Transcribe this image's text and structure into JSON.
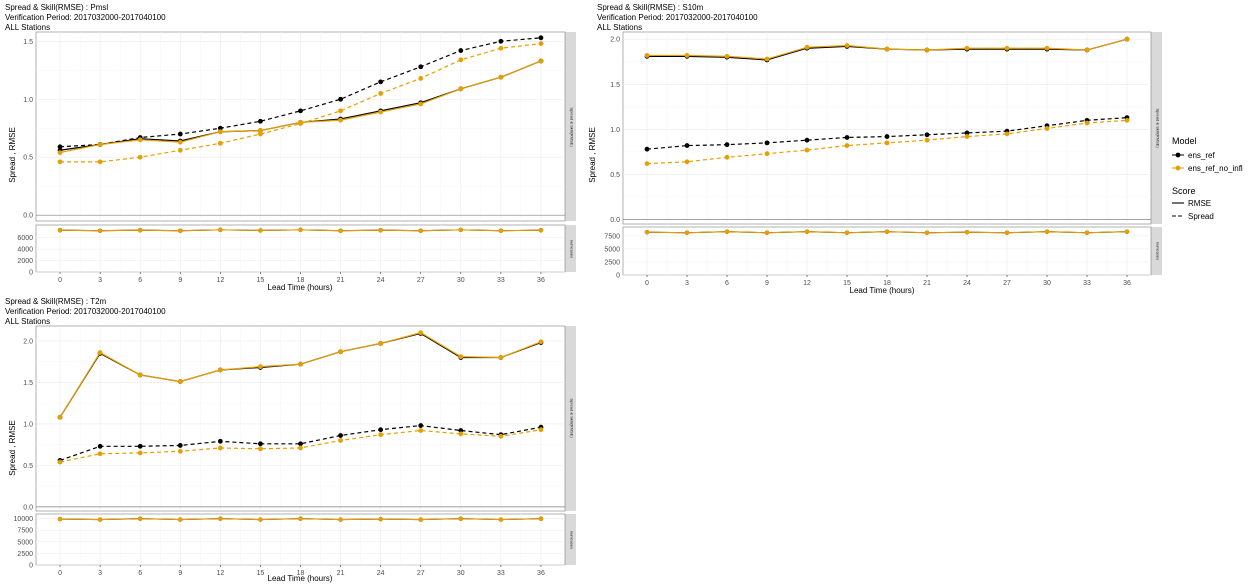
{
  "colors": {
    "ens_ref": "#000000",
    "ens_ref_no_infl": "#E69F00",
    "strip_bg": "#d9d9d9",
    "grid": "#ebebeb"
  },
  "legend": {
    "model_title": "Model",
    "models": [
      "ens_ref",
      "ens_ref_no_infl"
    ],
    "score_title": "Score",
    "scores": [
      "RMSE",
      "Spread"
    ]
  },
  "chart_data": [
    {
      "type": "line",
      "title_lines": [
        "Spread & Skill(RMSE) : Pmsl",
        "Verification Period: 2017032000-2017040100",
        "ALL Stations"
      ],
      "xlabel": "Lead Time (hours)",
      "ylabel": "Spread , RMSE",
      "x": [
        0,
        3,
        6,
        9,
        12,
        15,
        18,
        21,
        24,
        27,
        30,
        33,
        36
      ],
      "ylim": [
        -0.05,
        1.58
      ],
      "yticks": [
        0.0,
        0.5,
        1.0,
        1.5
      ],
      "strip_top": "Spread & Skill(RMSE)",
      "strip_bottom": "numcases",
      "series": [
        {
          "model": "ens_ref",
          "score": "RMSE",
          "values": [
            0.56,
            0.61,
            0.66,
            0.64,
            0.72,
            0.73,
            0.8,
            0.83,
            0.9,
            0.97,
            1.09,
            1.19,
            1.33
          ]
        },
        {
          "model": "ens_ref",
          "score": "Spread",
          "values": [
            0.59,
            0.61,
            0.67,
            0.7,
            0.75,
            0.81,
            0.9,
            1.0,
            1.15,
            1.28,
            1.42,
            1.5,
            1.53
          ]
        },
        {
          "model": "ens_ref_no_infl",
          "score": "RMSE",
          "values": [
            0.54,
            0.61,
            0.65,
            0.63,
            0.72,
            0.73,
            0.8,
            0.82,
            0.89,
            0.96,
            1.09,
            1.19,
            1.33
          ]
        },
        {
          "model": "ens_ref_no_infl",
          "score": "Spread",
          "values": [
            0.46,
            0.46,
            0.5,
            0.56,
            0.62,
            0.7,
            0.79,
            0.9,
            1.05,
            1.18,
            1.34,
            1.44,
            1.48
          ]
        }
      ],
      "numcases": {
        "ylim": [
          0,
          8200
        ],
        "yticks": [
          0,
          2000,
          4000,
          6000
        ],
        "values": [
          7300,
          7200,
          7300,
          7200,
          7350,
          7250,
          7350,
          7200,
          7300,
          7200,
          7350,
          7200,
          7300
        ]
      }
    },
    {
      "type": "line",
      "title_lines": [
        "Spread & Skill(RMSE) : S10m",
        "Verification Period: 2017032000-2017040100",
        "ALL Stations"
      ],
      "xlabel": "Lead Time (hours)",
      "ylabel": "Spread , RMSE",
      "x": [
        0,
        3,
        6,
        9,
        12,
        15,
        18,
        21,
        24,
        27,
        30,
        33,
        36
      ],
      "ylim": [
        -0.05,
        2.08
      ],
      "yticks": [
        0.0,
        0.5,
        1.0,
        1.5,
        2.0
      ],
      "strip_top": "Spread & Skill(RMSE)",
      "strip_bottom": "numcases",
      "series": [
        {
          "model": "ens_ref",
          "score": "RMSE",
          "values": [
            1.81,
            1.81,
            1.8,
            1.77,
            1.9,
            1.92,
            1.89,
            1.88,
            1.89,
            1.89,
            1.89,
            1.88,
            2.0
          ]
        },
        {
          "model": "ens_ref",
          "score": "Spread",
          "values": [
            0.78,
            0.82,
            0.83,
            0.85,
            0.88,
            0.91,
            0.92,
            0.94,
            0.96,
            0.98,
            1.04,
            1.1,
            1.13
          ]
        },
        {
          "model": "ens_ref_no_infl",
          "score": "RMSE",
          "values": [
            1.82,
            1.82,
            1.81,
            1.78,
            1.91,
            1.93,
            1.89,
            1.88,
            1.9,
            1.9,
            1.9,
            1.88,
            2.0
          ]
        },
        {
          "model": "ens_ref_no_infl",
          "score": "Spread",
          "values": [
            0.62,
            0.64,
            0.69,
            0.73,
            0.77,
            0.82,
            0.85,
            0.88,
            0.92,
            0.95,
            1.01,
            1.07,
            1.1
          ]
        }
      ],
      "numcases": {
        "ylim": [
          0,
          9200
        ],
        "yticks": [
          0,
          2500,
          5000,
          7500
        ],
        "values": [
          8200,
          8100,
          8300,
          8100,
          8300,
          8100,
          8300,
          8100,
          8200,
          8100,
          8300,
          8100,
          8300
        ]
      }
    },
    {
      "type": "line",
      "title_lines": [
        "Spread & Skill(RMSE) : T2m",
        "Verification Period: 2017032000-2017040100",
        "ALL Stations"
      ],
      "xlabel": "Lead Time (hours)",
      "ylabel": "Spread , RMSE",
      "x": [
        0,
        3,
        6,
        9,
        12,
        15,
        18,
        21,
        24,
        27,
        30,
        33,
        36
      ],
      "ylim": [
        -0.05,
        2.18
      ],
      "yticks": [
        0.0,
        0.5,
        1.0,
        1.5,
        2.0
      ],
      "strip_top": "Spread & Skill(RMSE)",
      "strip_bottom": "numcases",
      "series": [
        {
          "model": "ens_ref",
          "score": "RMSE",
          "values": [
            1.08,
            1.85,
            1.59,
            1.51,
            1.65,
            1.68,
            1.72,
            1.87,
            1.97,
            2.09,
            1.8,
            1.8,
            1.98
          ]
        },
        {
          "model": "ens_ref",
          "score": "Spread",
          "values": [
            0.56,
            0.73,
            0.73,
            0.74,
            0.79,
            0.76,
            0.76,
            0.86,
            0.93,
            0.98,
            0.92,
            0.87,
            0.96
          ]
        },
        {
          "model": "ens_ref_no_infl",
          "score": "RMSE",
          "values": [
            1.08,
            1.86,
            1.59,
            1.51,
            1.65,
            1.69,
            1.72,
            1.87,
            1.97,
            2.1,
            1.81,
            1.8,
            1.99
          ]
        },
        {
          "model": "ens_ref_no_infl",
          "score": "Spread",
          "values": [
            0.54,
            0.64,
            0.65,
            0.67,
            0.71,
            0.7,
            0.71,
            0.8,
            0.87,
            0.92,
            0.88,
            0.85,
            0.93
          ]
        }
      ],
      "numcases": {
        "ylim": [
          0,
          11000
        ],
        "yticks": [
          0,
          2500,
          5000,
          7500,
          10000
        ],
        "values": [
          9900,
          9800,
          10000,
          9800,
          10000,
          9800,
          10000,
          9800,
          9900,
          9800,
          10000,
          9800,
          10000
        ]
      }
    }
  ]
}
